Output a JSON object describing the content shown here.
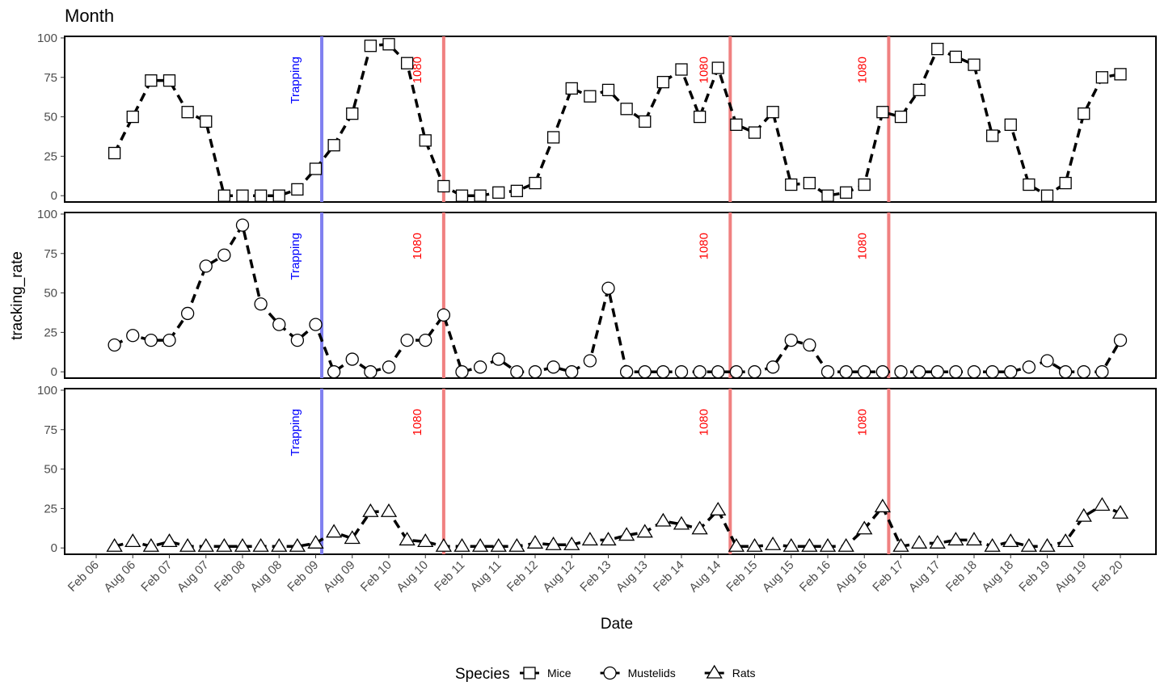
{
  "chart_data": {
    "type": "line",
    "title": "Month",
    "x_label": "Date",
    "y_label": "tracking_rate",
    "facet": true,
    "x": [
      "May 06",
      "Aug 06",
      "Nov 06",
      "Feb 07",
      "May 07",
      "Aug 07",
      "Nov 07",
      "Feb 08",
      "May 08",
      "Aug 08",
      "Nov 08",
      "Feb 09",
      "May 09",
      "Aug 09",
      "Nov 09",
      "Feb 10",
      "May 10",
      "Aug 10",
      "Nov 10",
      "Feb 11",
      "May 11",
      "Aug 11",
      "Nov 11",
      "Feb 12",
      "May 12",
      "Aug 12",
      "Nov 12",
      "Feb 13",
      "May 13",
      "Aug 13",
      "Nov 13",
      "Feb 14",
      "May 14",
      "Aug 14",
      "Nov 14",
      "Feb 15",
      "May 15",
      "Aug 15",
      "Nov 15",
      "Feb 16",
      "May 16",
      "Aug 16",
      "Nov 16",
      "Feb 17",
      "May 17",
      "Aug 17",
      "Nov 17",
      "Feb 18",
      "May 18",
      "Aug 18",
      "Nov 18",
      "Feb 19",
      "May 19",
      "Aug 19",
      "Nov 19",
      "Feb 20"
    ],
    "xticks": [
      "Feb 06",
      "Aug 06",
      "Feb 07",
      "Aug 07",
      "Feb 08",
      "Aug 08",
      "Feb 09",
      "Aug 09",
      "Feb 10",
      "Aug 10",
      "Feb 11",
      "Aug 11",
      "Feb 12",
      "Aug 12",
      "Feb 13",
      "Aug 13",
      "Feb 14",
      "Aug 14",
      "Feb 15",
      "Aug 15",
      "Feb 16",
      "Aug 16",
      "Feb 17",
      "Aug 17",
      "Feb 18",
      "Aug 18",
      "Feb 19",
      "Aug 19",
      "Feb 20"
    ],
    "ylim": [
      -4,
      101
    ],
    "yticks": [
      0,
      25,
      50,
      75,
      100
    ],
    "legend_title": "Species",
    "series": [
      {
        "name": "Mice",
        "marker": "square",
        "color": "#000000",
        "values": [
          27,
          50,
          73,
          73,
          53,
          47,
          0,
          0,
          0,
          0,
          4,
          17,
          32,
          52,
          95,
          96,
          84,
          35,
          6,
          0,
          0,
          2,
          3,
          8,
          37,
          68,
          63,
          67,
          55,
          47,
          72,
          80,
          50,
          81,
          45,
          40,
          53,
          7,
          8,
          0,
          2,
          7,
          53,
          50,
          67,
          93,
          88,
          83,
          38,
          45,
          7,
          0,
          8,
          52,
          75,
          77
        ]
      },
      {
        "name": "Mustelids",
        "marker": "circle",
        "color": "#000000",
        "values": [
          17,
          23,
          20,
          20,
          37,
          67,
          74,
          93,
          43,
          30,
          20,
          30,
          0,
          8,
          0,
          3,
          20,
          20,
          36,
          0,
          3,
          8,
          0,
          0,
          3,
          0,
          7,
          53,
          0,
          0,
          0,
          0,
          0,
          0,
          0,
          0,
          3,
          20,
          17,
          0,
          0,
          0,
          0,
          0,
          0,
          0,
          0,
          0,
          0,
          0,
          3,
          7,
          0,
          0,
          0,
          20
        ]
      },
      {
        "name": "Rats",
        "marker": "triangle",
        "color": "#000000",
        "values": [
          1,
          4,
          1,
          4,
          1,
          1,
          1,
          1,
          1,
          1,
          1,
          3,
          10,
          6,
          23,
          23,
          5,
          4,
          1,
          1,
          1,
          1,
          1,
          3,
          2,
          2,
          5,
          5,
          8,
          10,
          17,
          15,
          12,
          24,
          1,
          1,
          2,
          1,
          1,
          1,
          1,
          12,
          26,
          1,
          3,
          3,
          5,
          5,
          1,
          4,
          1,
          1,
          4,
          20,
          27,
          22
        ]
      }
    ],
    "annotations": [
      {
        "label": "Trapping",
        "x": "Mar 09",
        "color": "#0000ff",
        "line_color": "#8080f0"
      },
      {
        "label": "1080",
        "x": "Nov 10",
        "color": "#ff0000",
        "line_color": "#f08080"
      },
      {
        "label": "1080",
        "x": "Oct 14",
        "color": "#ff0000",
        "line_color": "#f08080"
      },
      {
        "label": "1080",
        "x": "Dec 16",
        "color": "#ff0000",
        "line_color": "#f08080"
      }
    ]
  }
}
